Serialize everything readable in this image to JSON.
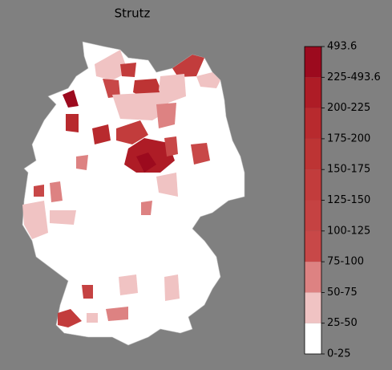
{
  "title": "Strutz",
  "legend": {
    "labels": [
      "0-25",
      "25-50",
      "50-75",
      "75-100",
      "100-125",
      "125-150",
      "150-175",
      "175-200",
      "200-225",
      "225-493.6",
      "493.6"
    ],
    "colors": [
      "#ffffff",
      "#f0c3c3",
      "#dd8282",
      "#c84848",
      "#c54242",
      "#c23c3c",
      "#bd3434",
      "#b82a2e",
      "#ae1c26",
      "#9c0a1e"
    ]
  }
}
